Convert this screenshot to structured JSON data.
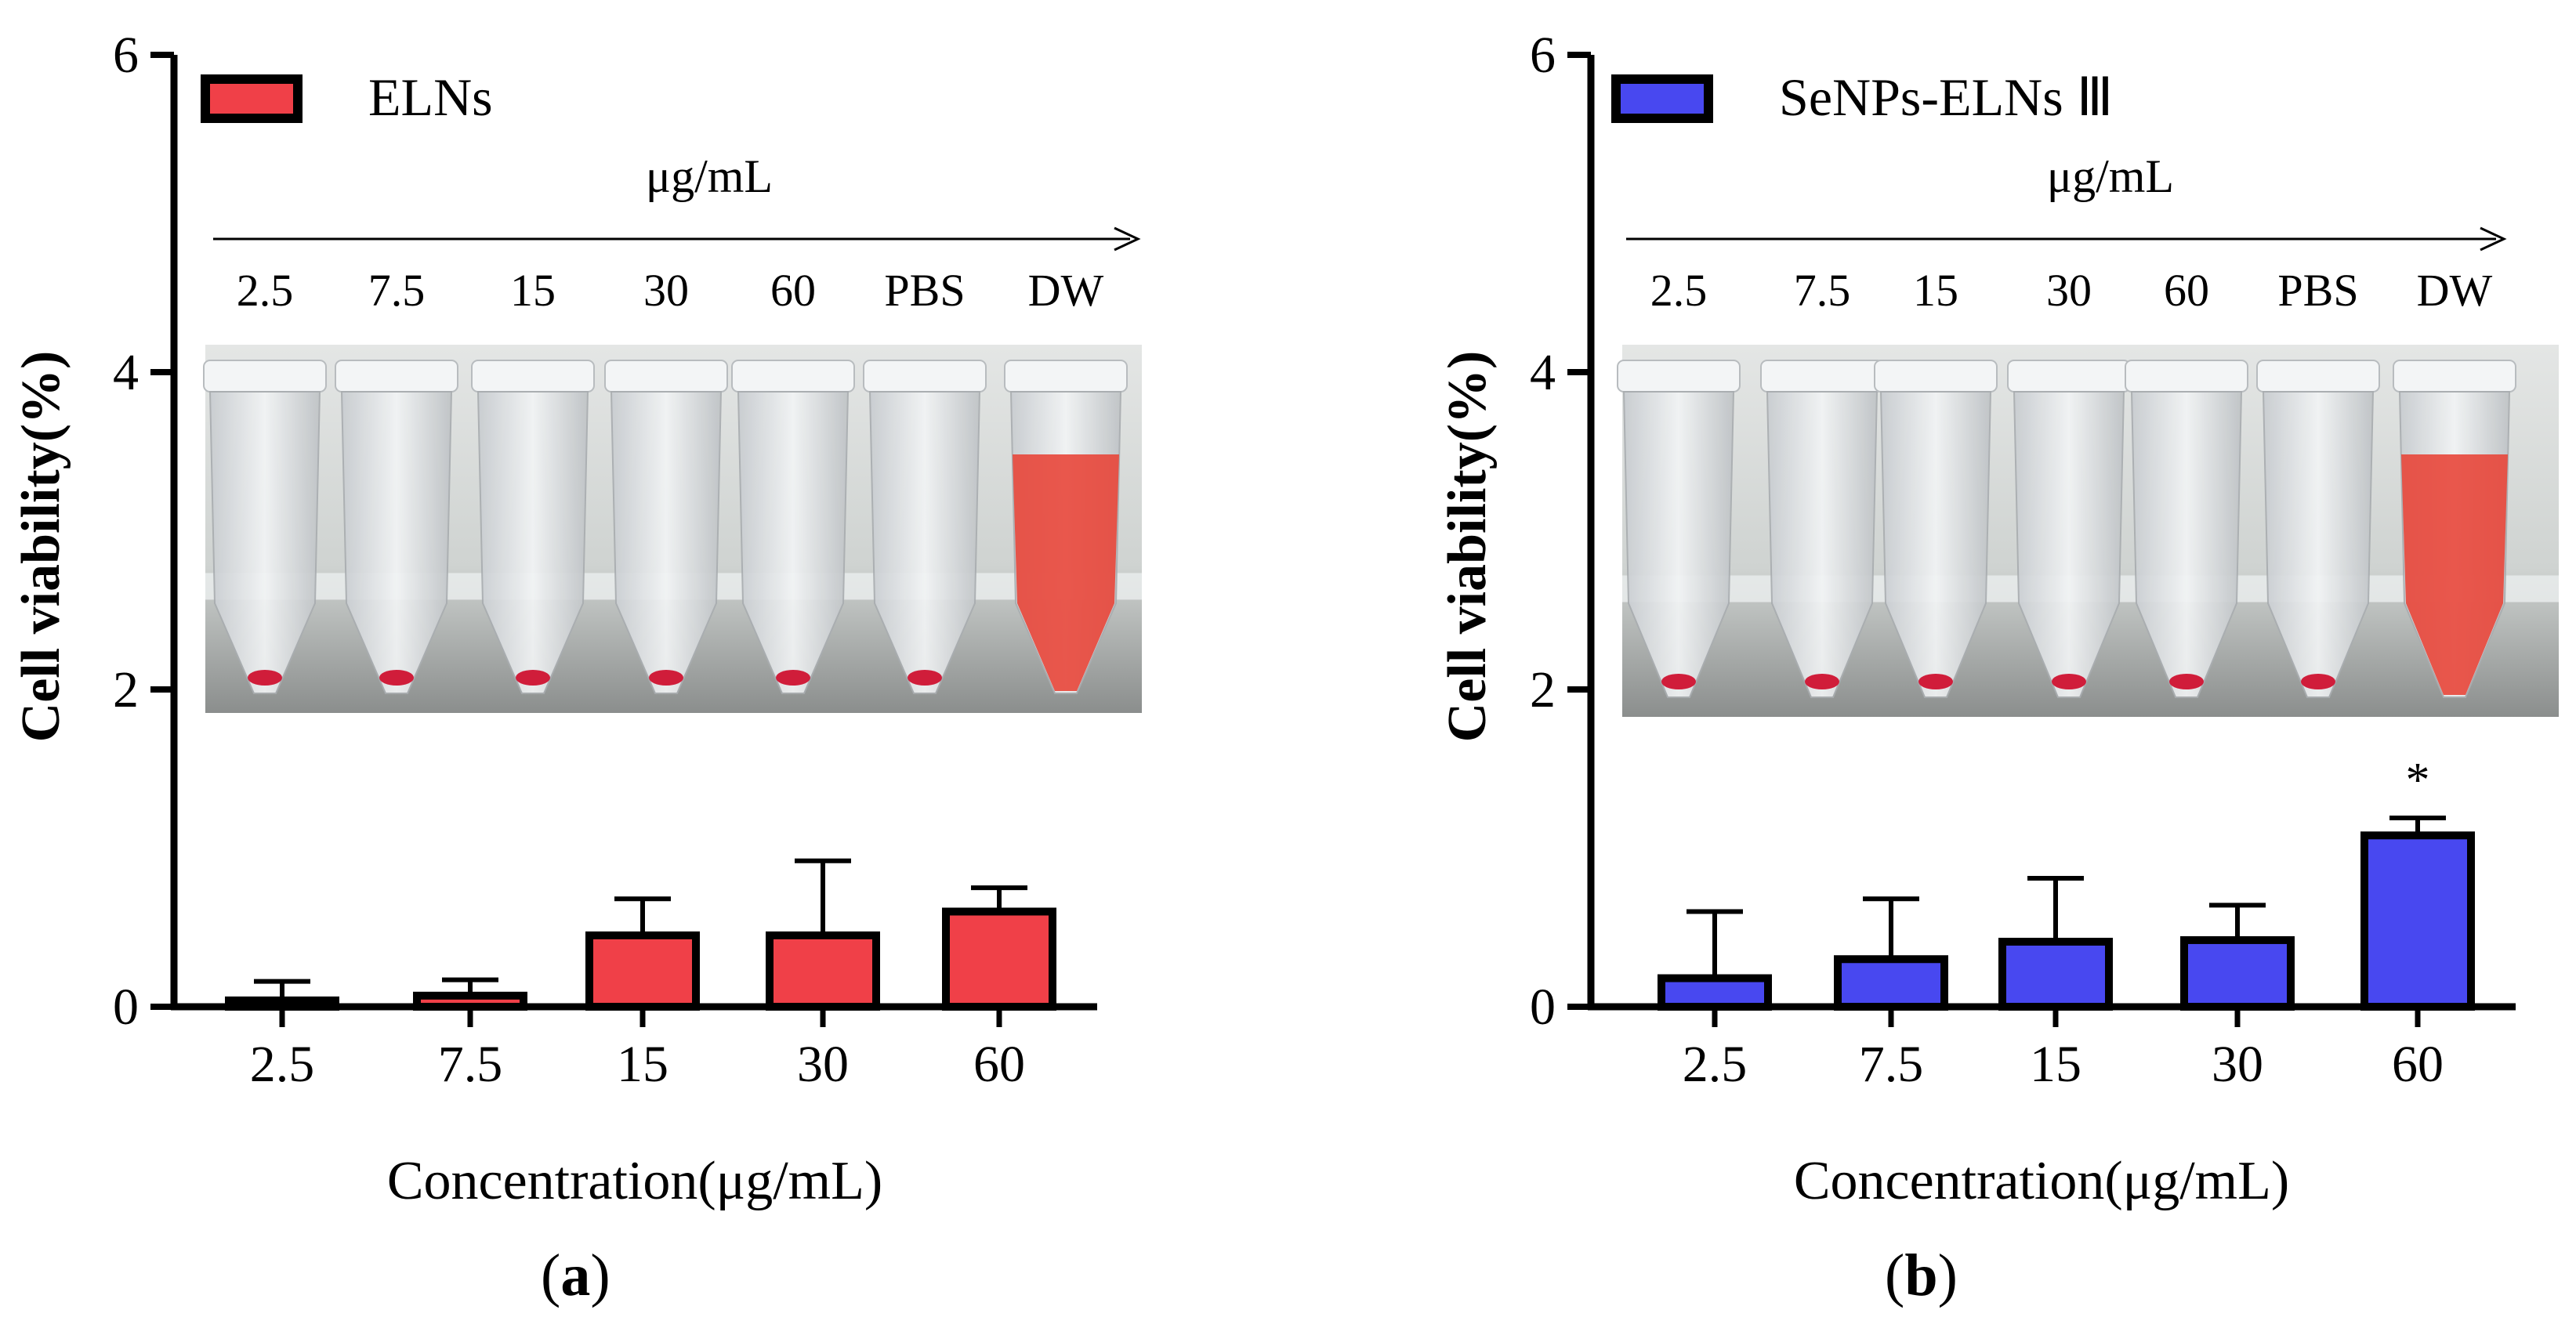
{
  "colors": {
    "ELNs": "#f04048",
    "SeNPs-ELNs III": "#4848f0",
    "axis": "#000000",
    "tube_red": "#e8463a",
    "tube_photo_bg": "#d9dcda"
  },
  "chart_data": [
    {
      "panel": "(a)",
      "type": "bar",
      "legend": "ELNs",
      "legend_position": "top-left",
      "ylabel": "Cell viability(%)",
      "xlabel": "Concentration(μg/mL)",
      "ylim": [
        0,
        6
      ],
      "yticks": [
        0,
        2,
        4,
        6
      ],
      "categories": [
        "2.5",
        "7.5",
        "15",
        "30",
        "60"
      ],
      "values": [
        0.04,
        0.07,
        0.45,
        0.45,
        0.6
      ],
      "errors": [
        0.12,
        0.1,
        0.23,
        0.47,
        0.15
      ],
      "significance": [
        "",
        "",
        "",
        "",
        ""
      ],
      "inset": {
        "unit": "μg/mL",
        "labels": [
          "2.5",
          "7.5",
          "15",
          "30",
          "60",
          "PBS",
          "DW"
        ],
        "hemolyzed": [
          false,
          false,
          false,
          false,
          false,
          false,
          true
        ]
      }
    },
    {
      "panel": "(b)",
      "type": "bar",
      "legend": "SeNPs-ELNs Ⅲ",
      "legend_position": "top-left",
      "ylabel": "Cell viability(%)",
      "xlabel": "Concentration(μg/mL)",
      "ylim": [
        0,
        6
      ],
      "yticks": [
        0,
        2,
        4,
        6
      ],
      "categories": [
        "2.5",
        "7.5",
        "15",
        "30",
        "60"
      ],
      "values": [
        0.18,
        0.3,
        0.41,
        0.42,
        1.08
      ],
      "errors": [
        0.42,
        0.38,
        0.4,
        0.22,
        0.11
      ],
      "significance": [
        "",
        "",
        "",
        "",
        "*"
      ],
      "inset": {
        "unit": "μg/mL",
        "labels": [
          "2.5",
          "7.5",
          "15",
          "30",
          "60",
          "PBS",
          "DW"
        ],
        "hemolyzed": [
          false,
          false,
          false,
          false,
          false,
          false,
          true
        ]
      }
    }
  ]
}
